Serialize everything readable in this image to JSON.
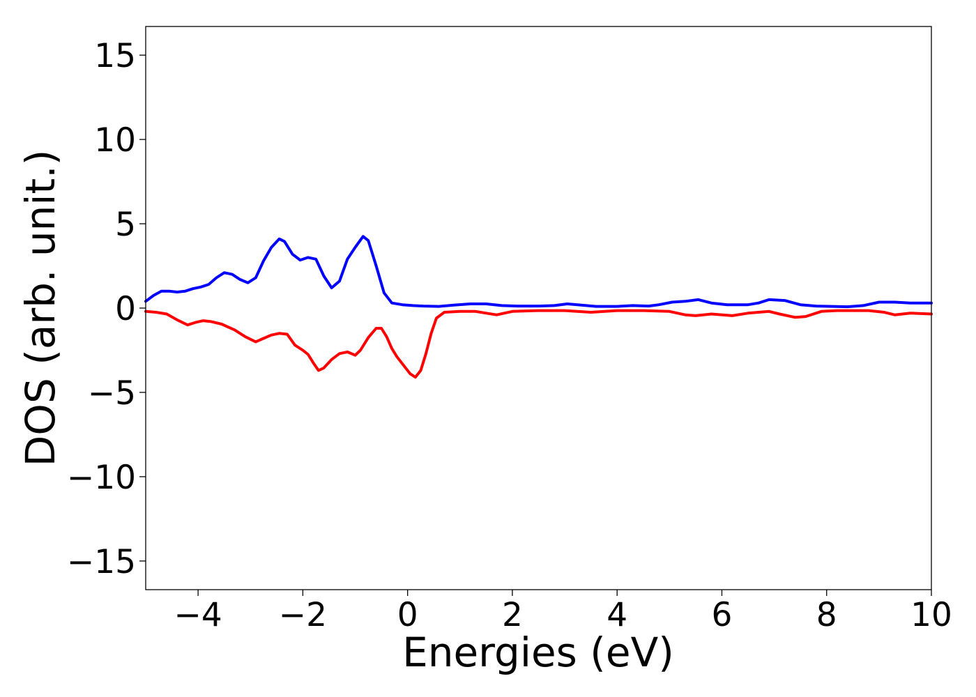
{
  "chart_data": {
    "type": "line",
    "xlabel": "Energies (eV)",
    "ylabel": "DOS (arb. unit.)",
    "xlim": [
      -5,
      10
    ],
    "ylim": [
      -16.7,
      16.7
    ],
    "xticks": [
      -4,
      -2,
      0,
      2,
      4,
      6,
      8,
      10
    ],
    "xtick_labels": [
      "−4",
      "−2",
      "0",
      "2",
      "4",
      "6",
      "8",
      "10"
    ],
    "yticks": [
      15,
      10,
      5,
      0,
      -5,
      -10,
      -15
    ],
    "ytick_labels": [
      "15",
      "10",
      "5",
      "0",
      "−5",
      "−10",
      "−15"
    ],
    "grid": false,
    "series": [
      {
        "color": "#0000ff",
        "x": [
          -5.0,
          -4.85,
          -4.7,
          -4.55,
          -4.4,
          -4.25,
          -4.1,
          -3.95,
          -3.8,
          -3.65,
          -3.5,
          -3.35,
          -3.2,
          -3.05,
          -2.9,
          -2.75,
          -2.6,
          -2.45,
          -2.35,
          -2.2,
          -2.05,
          -1.9,
          -1.75,
          -1.6,
          -1.45,
          -1.3,
          -1.15,
          -1.0,
          -0.85,
          -0.75,
          -0.6,
          -0.45,
          -0.3,
          -0.1,
          0.1,
          0.3,
          0.6,
          0.9,
          1.2,
          1.5,
          1.8,
          2.1,
          2.5,
          2.8,
          3.05,
          3.3,
          3.6,
          4.0,
          4.3,
          4.6,
          4.8,
          5.05,
          5.3,
          5.55,
          5.8,
          6.1,
          6.5,
          6.7,
          6.9,
          7.2,
          7.5,
          7.8,
          8.1,
          8.4,
          8.7,
          9.0,
          9.3,
          9.6,
          9.8,
          10.0
        ],
        "y": [
          0.4,
          0.75,
          1.0,
          1.0,
          0.95,
          1.0,
          1.15,
          1.25,
          1.4,
          1.8,
          2.1,
          2.0,
          1.7,
          1.5,
          1.8,
          2.8,
          3.6,
          4.1,
          3.95,
          3.2,
          2.85,
          3.0,
          2.9,
          1.9,
          1.2,
          1.6,
          2.9,
          3.6,
          4.25,
          4.0,
          2.5,
          0.9,
          0.3,
          0.2,
          0.15,
          0.12,
          0.1,
          0.18,
          0.25,
          0.25,
          0.15,
          0.12,
          0.12,
          0.15,
          0.25,
          0.18,
          0.1,
          0.1,
          0.15,
          0.12,
          0.2,
          0.35,
          0.4,
          0.5,
          0.3,
          0.2,
          0.2,
          0.3,
          0.5,
          0.45,
          0.2,
          0.12,
          0.1,
          0.08,
          0.15,
          0.35,
          0.35,
          0.3,
          0.3,
          0.3
        ]
      },
      {
        "color": "#ff0000",
        "x": [
          -5.0,
          -4.8,
          -4.6,
          -4.4,
          -4.2,
          -4.05,
          -3.9,
          -3.75,
          -3.55,
          -3.3,
          -3.1,
          -2.9,
          -2.75,
          -2.6,
          -2.45,
          -2.3,
          -2.15,
          -2.0,
          -1.9,
          -1.8,
          -1.7,
          -1.6,
          -1.45,
          -1.3,
          -1.15,
          -1.0,
          -0.9,
          -0.75,
          -0.6,
          -0.5,
          -0.4,
          -0.3,
          -0.2,
          -0.05,
          0.05,
          0.15,
          0.25,
          0.35,
          0.45,
          0.55,
          0.7,
          1.0,
          1.3,
          1.5,
          1.7,
          2.0,
          2.5,
          3.0,
          3.5,
          4.0,
          4.5,
          5.0,
          5.3,
          5.5,
          5.8,
          6.2,
          6.5,
          6.9,
          7.1,
          7.4,
          7.6,
          7.9,
          8.2,
          8.5,
          8.8,
          9.1,
          9.3,
          9.6,
          10.0
        ],
        "y": [
          -0.2,
          -0.25,
          -0.35,
          -0.7,
          -1.0,
          -0.85,
          -0.75,
          -0.8,
          -0.95,
          -1.3,
          -1.7,
          -2.0,
          -1.8,
          -1.6,
          -1.5,
          -1.55,
          -2.2,
          -2.5,
          -2.75,
          -3.25,
          -3.7,
          -3.55,
          -3.05,
          -2.7,
          -2.6,
          -2.8,
          -2.5,
          -1.75,
          -1.2,
          -1.2,
          -1.7,
          -2.4,
          -2.9,
          -3.5,
          -3.9,
          -4.1,
          -3.7,
          -2.7,
          -1.5,
          -0.6,
          -0.25,
          -0.2,
          -0.2,
          -0.3,
          -0.4,
          -0.2,
          -0.15,
          -0.15,
          -0.25,
          -0.15,
          -0.15,
          -0.2,
          -0.4,
          -0.45,
          -0.35,
          -0.45,
          -0.3,
          -0.2,
          -0.35,
          -0.55,
          -0.5,
          -0.2,
          -0.15,
          -0.15,
          -0.15,
          -0.25,
          -0.4,
          -0.3,
          -0.35
        ]
      }
    ]
  }
}
